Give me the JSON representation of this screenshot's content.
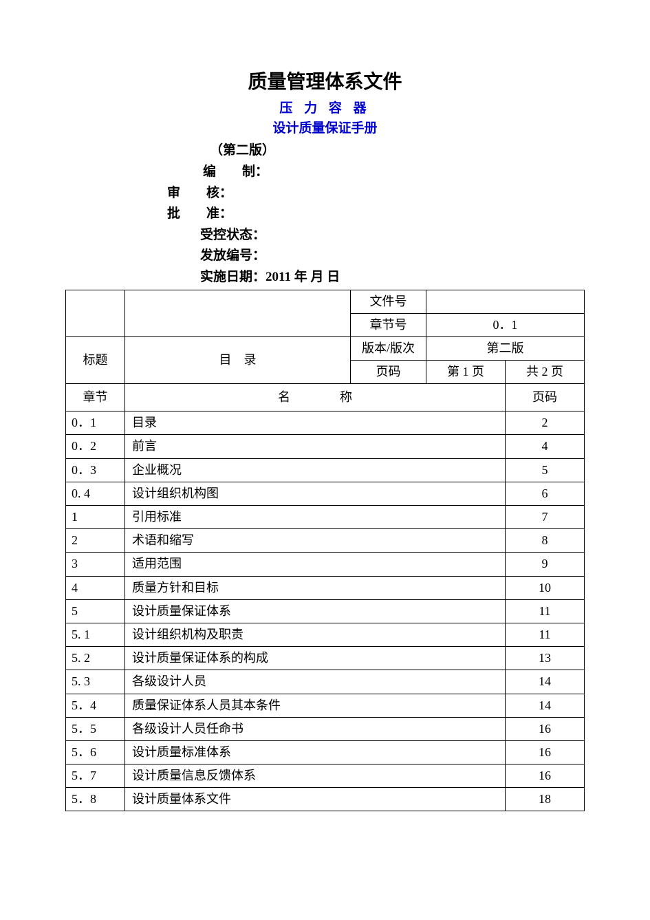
{
  "colors": {
    "text": "#000000",
    "accent": "#0000cc",
    "background": "#ffffff",
    "border": "#000000"
  },
  "typography": {
    "body_family": "SimSun",
    "body_size_pt": 14,
    "title_size_pt": 21,
    "title_weight": "bold"
  },
  "header": {
    "title": "质量管理体系文件",
    "subtitle1": "压 力 容 器",
    "subtitle2": "设计质量保证手册",
    "edition": "（第二版）"
  },
  "meta": {
    "compiled_label": "编　　制：",
    "reviewed_label": "审　　核：",
    "approved_label": "批　　准：",
    "control_label": "受控状态：",
    "issue_label": "发放编号：",
    "date_label": "实施日期：",
    "date_value": "2011 年  月  日"
  },
  "info_table": {
    "doc_no_label": "文件号",
    "doc_no_value": "",
    "section_no_label": "章节号",
    "section_no_value": "0．1",
    "title_label": "标题",
    "title_value": "目　录",
    "version_label": "版本/版次",
    "version_value": "第二版",
    "page_label": "页码",
    "page_current": "第 1 页",
    "page_total": "共 2 页"
  },
  "toc_header": {
    "chapter": "章节",
    "name": "名　　　　称",
    "page": "页码"
  },
  "toc": [
    {
      "chapter": "0．1",
      "name": "目录",
      "page": "2"
    },
    {
      "chapter": "0．2",
      "name": "前言",
      "page": "4"
    },
    {
      "chapter": "0．3",
      "name": "企业概况",
      "page": "5"
    },
    {
      "chapter": "0. 4",
      "name": "设计组织机构图",
      "page": "6"
    },
    {
      "chapter": "1",
      "name": "引用标准",
      "page": "7"
    },
    {
      "chapter": "2",
      "name": "术语和缩写",
      "page": "8"
    },
    {
      "chapter": "3",
      "name": "适用范围",
      "page": "9"
    },
    {
      "chapter": "4",
      "name": "质量方针和目标",
      "page": "10"
    },
    {
      "chapter": "5",
      "name": "设计质量保证体系",
      "page": "11"
    },
    {
      "chapter": "5. 1",
      "name": "设计组织机构及职责",
      "page": "11"
    },
    {
      "chapter": "5. 2",
      "name": "设计质量保证体系的构成",
      "page": "13"
    },
    {
      "chapter": "5. 3",
      "name": "各级设计人员",
      "page": "14"
    },
    {
      "chapter": "5．4",
      "name": "质量保证体系人员其本条件",
      "page": "14"
    },
    {
      "chapter": "5．5",
      "name": "各级设计人员任命书",
      "page": "16"
    },
    {
      "chapter": "5．6",
      "name": "设计质量标准体系",
      "page": "16"
    },
    {
      "chapter": "5．7",
      "name": "设计质量信息反馈体系",
      "page": "16"
    },
    {
      "chapter": "5．8",
      "name": "设计质量体系文件",
      "page": "18"
    }
  ]
}
